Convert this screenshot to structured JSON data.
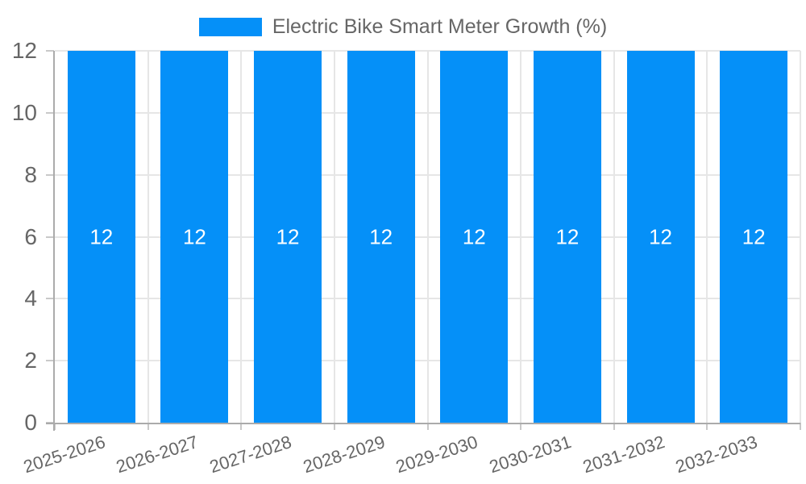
{
  "chart_data": {
    "type": "bar",
    "title": "Electric Bike Smart Meter Growth (%)",
    "categories": [
      "2025-2026",
      "2026-2027",
      "2027-2028",
      "2028-2029",
      "2029-2030",
      "2030-2031",
      "2031-2032",
      "2032-2033"
    ],
    "series": [
      {
        "name": "Electric Bike Smart Meter Growth (%)",
        "values": [
          12,
          12,
          12,
          12,
          12,
          12,
          12,
          12
        ]
      }
    ],
    "bar_value_labels": [
      "12",
      "12",
      "12",
      "12",
      "12",
      "12",
      "12",
      "12"
    ],
    "xlabel": "",
    "ylabel": "",
    "ylim": [
      0,
      12
    ],
    "yticks": [
      0,
      2,
      4,
      6,
      8,
      10,
      12
    ],
    "grid": true,
    "legend_position": "top-center",
    "colors": {
      "bar": "#0590f8",
      "bar_label_text": "#ffffff",
      "axis_text": "#666666",
      "gridline": "#e6e6e6",
      "axis_line": "#ababab",
      "tick": "#c9c9c9",
      "background": "#ffffff"
    }
  }
}
